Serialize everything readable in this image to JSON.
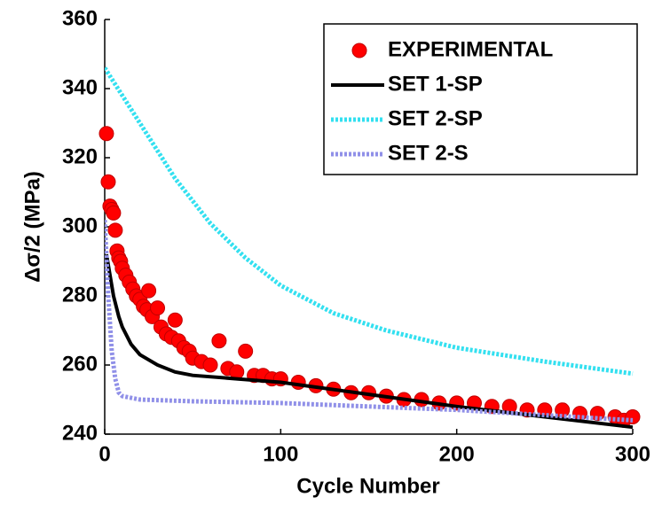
{
  "chart_data": {
    "type": "line",
    "x_label": "Cycle Number",
    "y_label": "Δσ/2 (MPa)",
    "xlim": [
      0,
      300
    ],
    "xticks": [
      0,
      100,
      200,
      300
    ],
    "ylim": [
      240,
      360
    ],
    "yticks": [
      240,
      260,
      280,
      300,
      320,
      340,
      360
    ],
    "legend": "upper right",
    "series": [
      {
        "name": "EXPERIMENTAL",
        "color": "#ff0000",
        "marker": "circle",
        "linestyle": "none",
        "x": [
          1,
          2,
          3,
          4,
          5,
          6,
          7,
          8,
          9,
          10,
          12,
          14,
          16,
          18,
          20,
          22,
          24,
          25,
          27,
          30,
          32,
          35,
          38,
          40,
          42,
          45,
          48,
          50,
          55,
          60,
          65,
          70,
          75,
          80,
          85,
          90,
          95,
          100,
          110,
          120,
          130,
          140,
          150,
          160,
          170,
          180,
          190,
          200,
          210,
          220,
          230,
          240,
          250,
          260,
          270,
          280,
          290,
          295,
          300
        ],
        "values": [
          327,
          313,
          306,
          305,
          304,
          299,
          293,
          291,
          290,
          288,
          286,
          284,
          282,
          280,
          279,
          277,
          276,
          281.5,
          274,
          276.5,
          271,
          269,
          268,
          273,
          267,
          265,
          264,
          262,
          261,
          260,
          267,
          259,
          258,
          264,
          257,
          257,
          256,
          256,
          255,
          254,
          253,
          252,
          252,
          251,
          250,
          250,
          249,
          249,
          249,
          248,
          248,
          247,
          247,
          247,
          246,
          246,
          245,
          244,
          245
        ]
      },
      {
        "name": "SET 1-SP",
        "color": "#000000",
        "marker": "none",
        "linestyle": "solid",
        "x": [
          1,
          3,
          5,
          8,
          10,
          15,
          20,
          30,
          40,
          50,
          75,
          100,
          150,
          200,
          250,
          300
        ],
        "values": [
          292,
          286,
          280,
          274,
          271,
          266,
          263,
          260,
          258,
          257,
          256,
          255,
          251.5,
          248,
          245,
          242
        ]
      },
      {
        "name": "SET 2-SP",
        "color": "#33e0f0",
        "marker": "none",
        "linestyle": "dotted",
        "x": [
          0,
          10,
          20,
          40,
          60,
          80,
          100,
          130,
          160,
          200,
          250,
          300
        ],
        "values": [
          346,
          338,
          330,
          314,
          301,
          291,
          283,
          275,
          270,
          265,
          261,
          257.5
        ]
      },
      {
        "name": "SET 2-S",
        "color": "#9090e8",
        "marker": "none",
        "linestyle": "dotted",
        "x": [
          0,
          2,
          4,
          6,
          8,
          10,
          15,
          20,
          50,
          100,
          200,
          300
        ],
        "values": [
          302,
          280,
          264,
          256,
          252,
          251,
          250.5,
          250,
          249.5,
          249,
          247,
          244
        ]
      }
    ]
  }
}
